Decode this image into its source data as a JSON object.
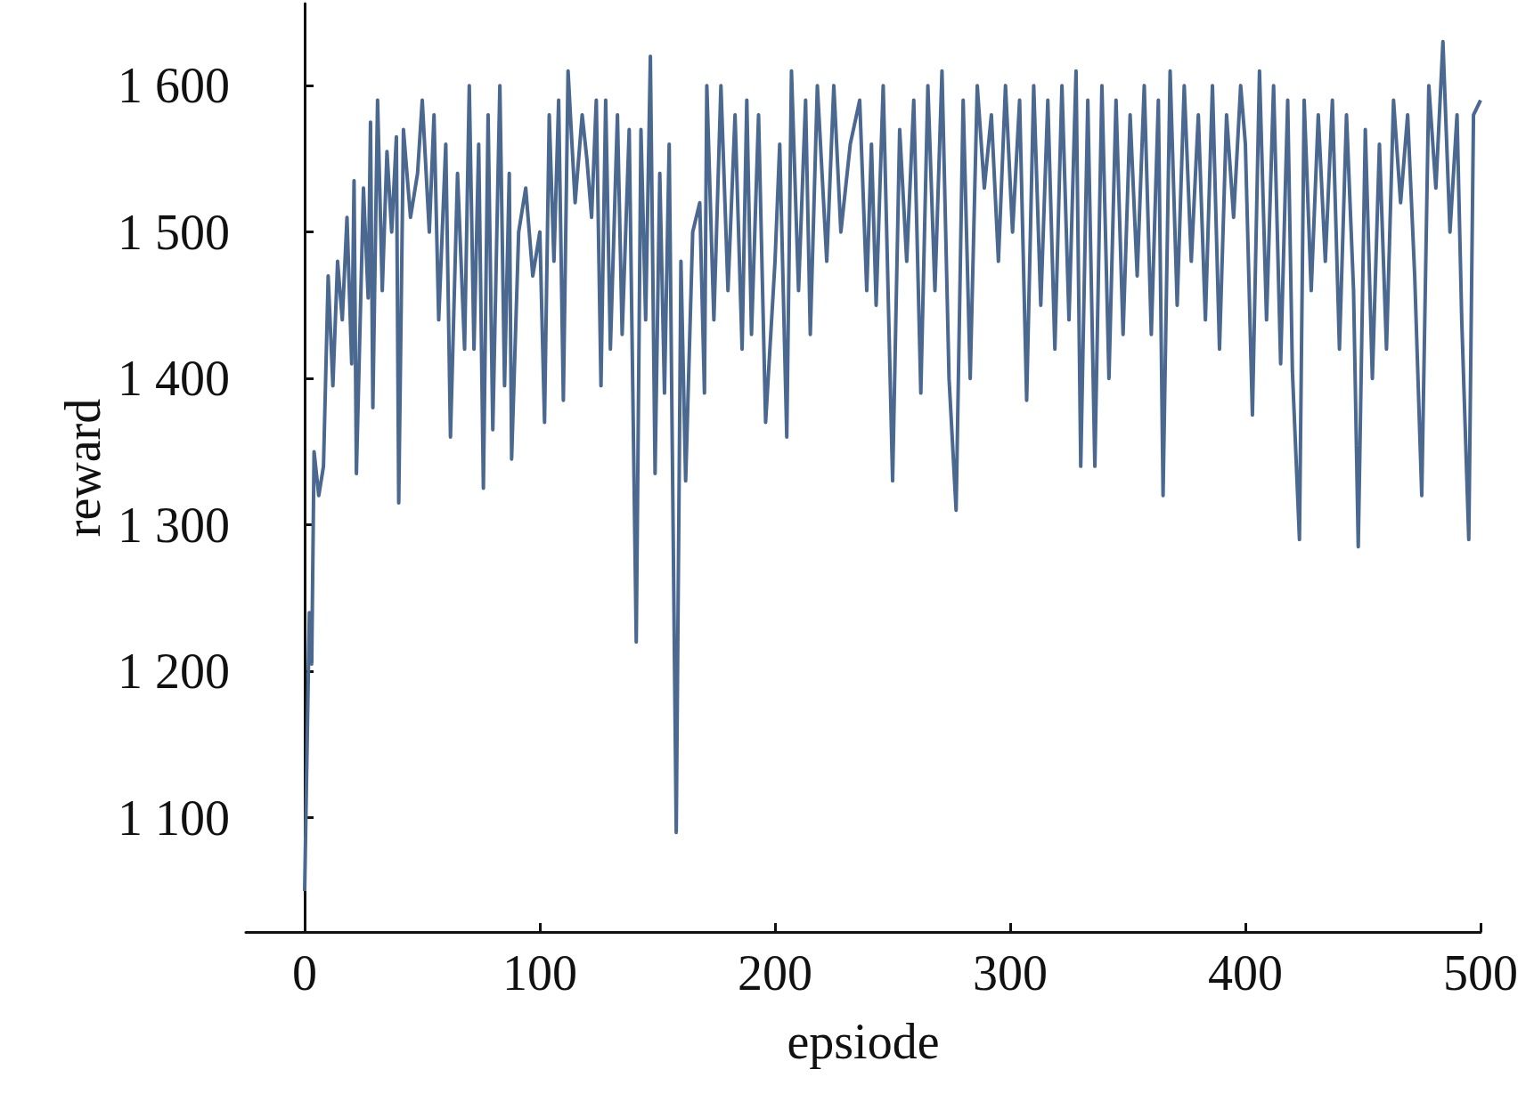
{
  "chart_data": {
    "type": "line",
    "xlabel": "epsiode",
    "ylabel": "reward",
    "xlim": [
      -25,
      500
    ],
    "xticks": [
      0,
      100,
      200,
      300,
      400,
      500
    ],
    "ylim": [
      1022,
      1656
    ],
    "yticks": [
      {
        "value": 1100,
        "label": "1 100"
      },
      {
        "value": 1200,
        "label": "1 200"
      },
      {
        "value": 1300,
        "label": "1 300"
      },
      {
        "value": 1400,
        "label": "1 400"
      },
      {
        "value": 1500,
        "label": "1 500"
      },
      {
        "value": 1600,
        "label": "1 600"
      }
    ],
    "grid": false,
    "marker": "none",
    "line_style": "solid",
    "series": [
      {
        "color": "#4a6890",
        "x": [
          0,
          2,
          3,
          4,
          6,
          8,
          10,
          12,
          14,
          16,
          18,
          20,
          21,
          22,
          25,
          27,
          28,
          29,
          31,
          33,
          35,
          37,
          39,
          40,
          42,
          45,
          48,
          50,
          53,
          55,
          57,
          60,
          62,
          65,
          68,
          70,
          72,
          74,
          76,
          78,
          80,
          83,
          85,
          87,
          88,
          91,
          94,
          97,
          100,
          102,
          104,
          106,
          108,
          110,
          112,
          115,
          118,
          120,
          122,
          124,
          126,
          128,
          130,
          133,
          135,
          138,
          141,
          143,
          145,
          147,
          149,
          151,
          153,
          155,
          158,
          160,
          162,
          165,
          168,
          170,
          171,
          174,
          177,
          180,
          183,
          186,
          188,
          190,
          193,
          196,
          200,
          202,
          205,
          207,
          210,
          213,
          215,
          218,
          222,
          225,
          228,
          232,
          236,
          239,
          241,
          243,
          246,
          250,
          253,
          256,
          259,
          262,
          265,
          268,
          271,
          274,
          277,
          280,
          283,
          286,
          289,
          292,
          295,
          298,
          301,
          304,
          307,
          310,
          313,
          316,
          319,
          322,
          325,
          328,
          330,
          333,
          336,
          339,
          342,
          345,
          348,
          351,
          354,
          357,
          360,
          363,
          365,
          368,
          371,
          374,
          377,
          380,
          383,
          386,
          389,
          392,
          395,
          398,
          400,
          403,
          406,
          409,
          412,
          415,
          418,
          420,
          423,
          425,
          428,
          431,
          434,
          437,
          440,
          443,
          446,
          448,
          451,
          454,
          457,
          460,
          463,
          466,
          469,
          472,
          475,
          478,
          481,
          484,
          487,
          490,
          492,
          495,
          497,
          500
        ],
        "values": [
          1050,
          1240,
          1205,
          1350,
          1320,
          1340,
          1470,
          1395,
          1480,
          1440,
          1510,
          1410,
          1535,
          1335,
          1530,
          1455,
          1575,
          1380,
          1590,
          1460,
          1555,
          1500,
          1565,
          1315,
          1570,
          1510,
          1540,
          1590,
          1500,
          1580,
          1440,
          1560,
          1360,
          1540,
          1420,
          1600,
          1420,
          1560,
          1325,
          1580,
          1365,
          1600,
          1395,
          1540,
          1345,
          1500,
          1530,
          1470,
          1500,
          1370,
          1580,
          1480,
          1590,
          1385,
          1610,
          1520,
          1580,
          1550,
          1510,
          1590,
          1395,
          1590,
          1420,
          1580,
          1430,
          1570,
          1220,
          1570,
          1440,
          1620,
          1335,
          1540,
          1390,
          1560,
          1090,
          1480,
          1330,
          1500,
          1520,
          1390,
          1600,
          1440,
          1600,
          1460,
          1580,
          1420,
          1590,
          1430,
          1580,
          1370,
          1480,
          1560,
          1360,
          1610,
          1460,
          1590,
          1430,
          1600,
          1480,
          1600,
          1500,
          1560,
          1590,
          1460,
          1560,
          1450,
          1600,
          1330,
          1570,
          1480,
          1590,
          1390,
          1600,
          1460,
          1610,
          1400,
          1310,
          1590,
          1400,
          1600,
          1530,
          1580,
          1480,
          1600,
          1500,
          1590,
          1385,
          1600,
          1450,
          1590,
          1420,
          1600,
          1440,
          1610,
          1340,
          1590,
          1340,
          1600,
          1400,
          1590,
          1430,
          1580,
          1470,
          1600,
          1430,
          1590,
          1320,
          1610,
          1450,
          1600,
          1480,
          1580,
          1440,
          1600,
          1420,
          1580,
          1510,
          1600,
          1560,
          1375,
          1610,
          1440,
          1600,
          1410,
          1590,
          1405,
          1290,
          1590,
          1460,
          1580,
          1480,
          1590,
          1420,
          1580,
          1460,
          1285,
          1570,
          1400,
          1560,
          1420,
          1590,
          1520,
          1580,
          1470,
          1320,
          1600,
          1530,
          1630,
          1500,
          1580,
          1440,
          1290,
          1580,
          1590
        ]
      }
    ]
  }
}
